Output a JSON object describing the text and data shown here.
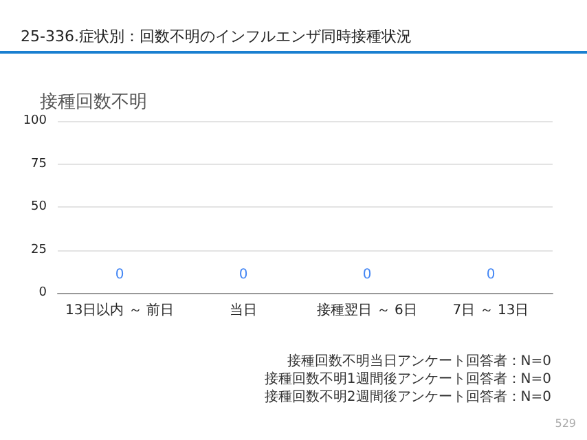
{
  "chart_data": {
    "type": "bar",
    "title": "25-336.症状別：回数不明のインフルエンザ同時接種状況",
    "subtitle": "接種回数不明",
    "categories": [
      "13日以内 ～ 前日",
      "当日",
      "接種翌日 ～ 6日",
      "7日 ～ 13日"
    ],
    "series": [
      {
        "color": "#4285f4",
        "values": [
          0,
          0,
          0,
          0
        ]
      }
    ],
    "ylim": [
      0,
      100
    ],
    "yticks": [
      0,
      25,
      50,
      75,
      100
    ],
    "grid": "y",
    "data_labels": true,
    "annotations": [
      "接種回数不明当日アンケート回答者：N=0",
      "接種回数不明1週間後アンケート回答者：N=0",
      "接種回数不明2週間後アンケート回答者：N=0",
      "529"
    ]
  }
}
